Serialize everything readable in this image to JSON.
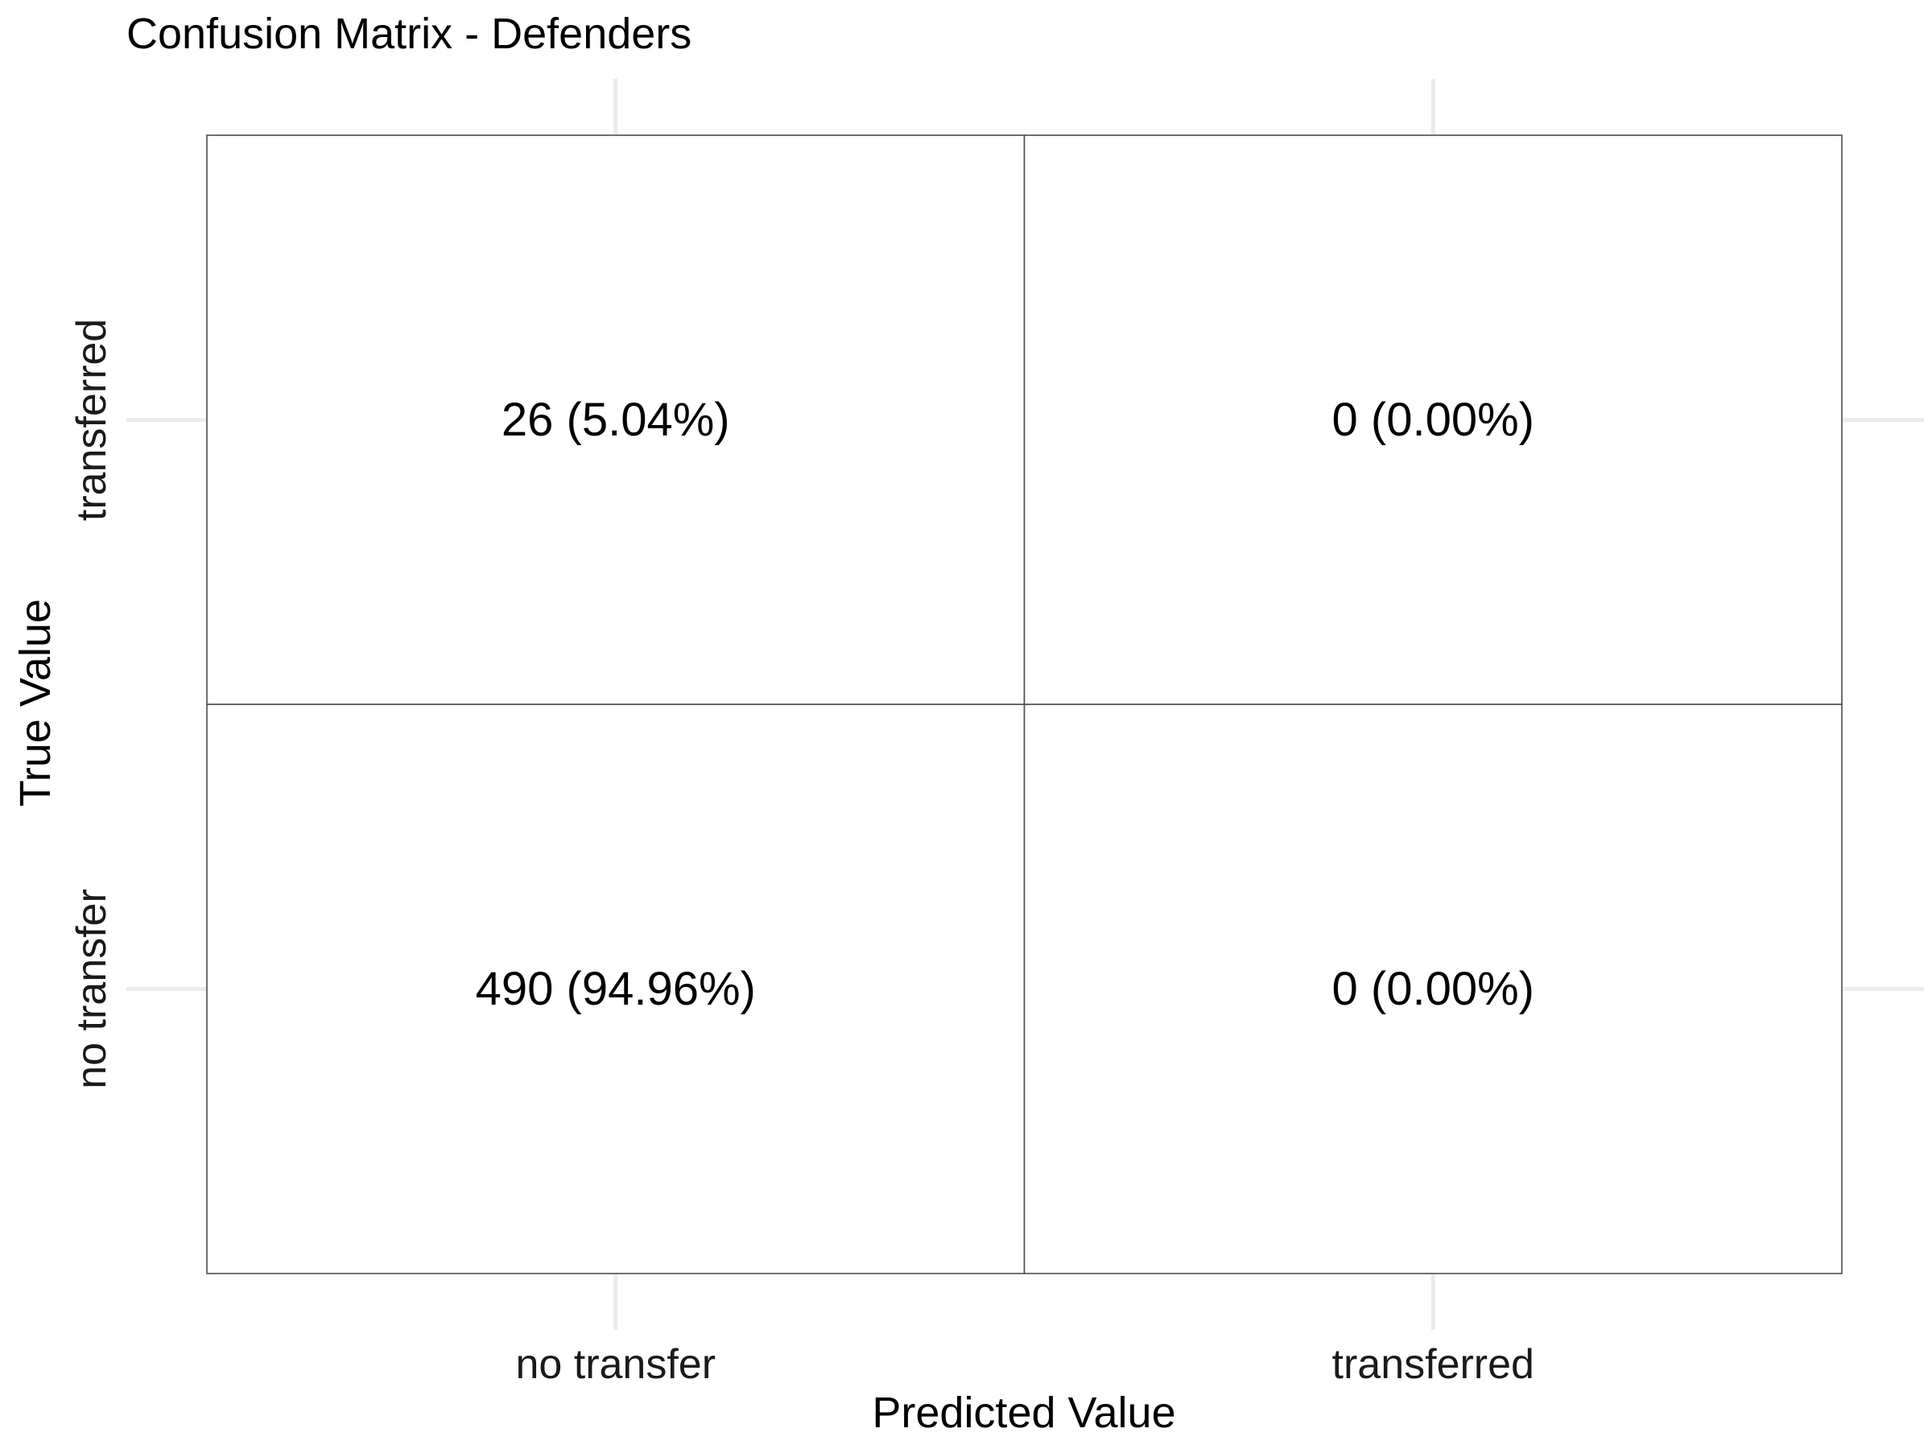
{
  "chart_data": {
    "type": "heatmap",
    "title": "Confusion Matrix - Defenders",
    "xlabel": "Predicted Value",
    "ylabel": "True Value",
    "x_categories": [
      "no transfer",
      "transferred"
    ],
    "y_categories": [
      "no transfer",
      "transferred"
    ],
    "cells": [
      {
        "true": "transferred",
        "predicted": "no transfer",
        "count": 26,
        "label": "26 (5.04%)"
      },
      {
        "true": "transferred",
        "predicted": "transferred",
        "count": 0,
        "label": "0 (0.00%)"
      },
      {
        "true": "no transfer",
        "predicted": "no transfer",
        "count": 490,
        "label": "490 (94.96%)"
      },
      {
        "true": "no transfer",
        "predicted": "transferred",
        "count": 0,
        "label": "0 (0.00%)"
      }
    ],
    "grid": true,
    "legend": "none"
  }
}
